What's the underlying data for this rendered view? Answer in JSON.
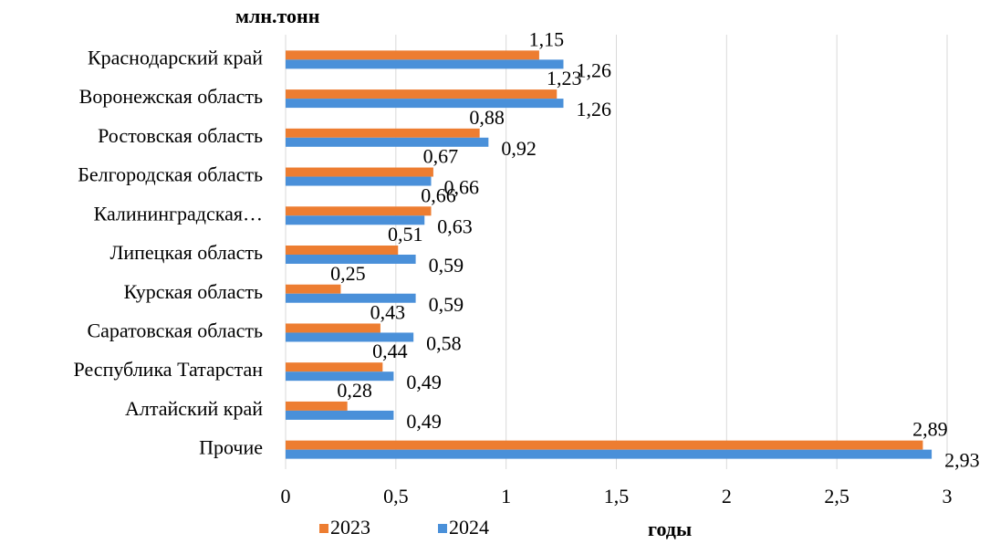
{
  "chart_data": {
    "type": "hbar",
    "y_axis_title": "млн.тонн",
    "x_axis_title": "годы",
    "categories": [
      "Краснодарский край",
      "Воронежская область",
      "Ростовская область",
      "Белгородская область",
      "Калининградская…",
      "Липецкая область",
      "Курская область",
      "Саратовская область",
      "Республика Татарстан",
      "Алтайский край",
      "Прочие"
    ],
    "series": [
      {
        "name": "2023",
        "color": "#ed7d31",
        "values": [
          1.15,
          1.23,
          0.88,
          0.67,
          0.66,
          0.51,
          0.25,
          0.43,
          0.44,
          0.28,
          2.89
        ],
        "value_labels": [
          "1,15",
          "1,23",
          "0,88",
          "0,67",
          "0,66",
          "0,51",
          "0,25",
          "0,43",
          "0,44",
          "0,28",
          "2,89"
        ]
      },
      {
        "name": "2024",
        "color": "#4a90d9",
        "values": [
          1.26,
          1.26,
          0.92,
          0.66,
          0.63,
          0.59,
          0.59,
          0.58,
          0.49,
          0.49,
          2.93
        ],
        "value_labels": [
          "1,26",
          "1,26",
          "0,92",
          "0,66",
          "0,63",
          "0,59",
          "0,59",
          "0,58",
          "0,49",
          "0,49",
          "2,93"
        ]
      }
    ],
    "xlim": [
      0,
      3
    ],
    "xticks": [
      0,
      {
        "value": 0.5,
        "label": "0,5"
      },
      1,
      {
        "value": 1.5,
        "label": "1,5"
      },
      2,
      {
        "value": 2.5,
        "label": "2,5"
      },
      3
    ],
    "grid": true,
    "legend": "bottom"
  }
}
